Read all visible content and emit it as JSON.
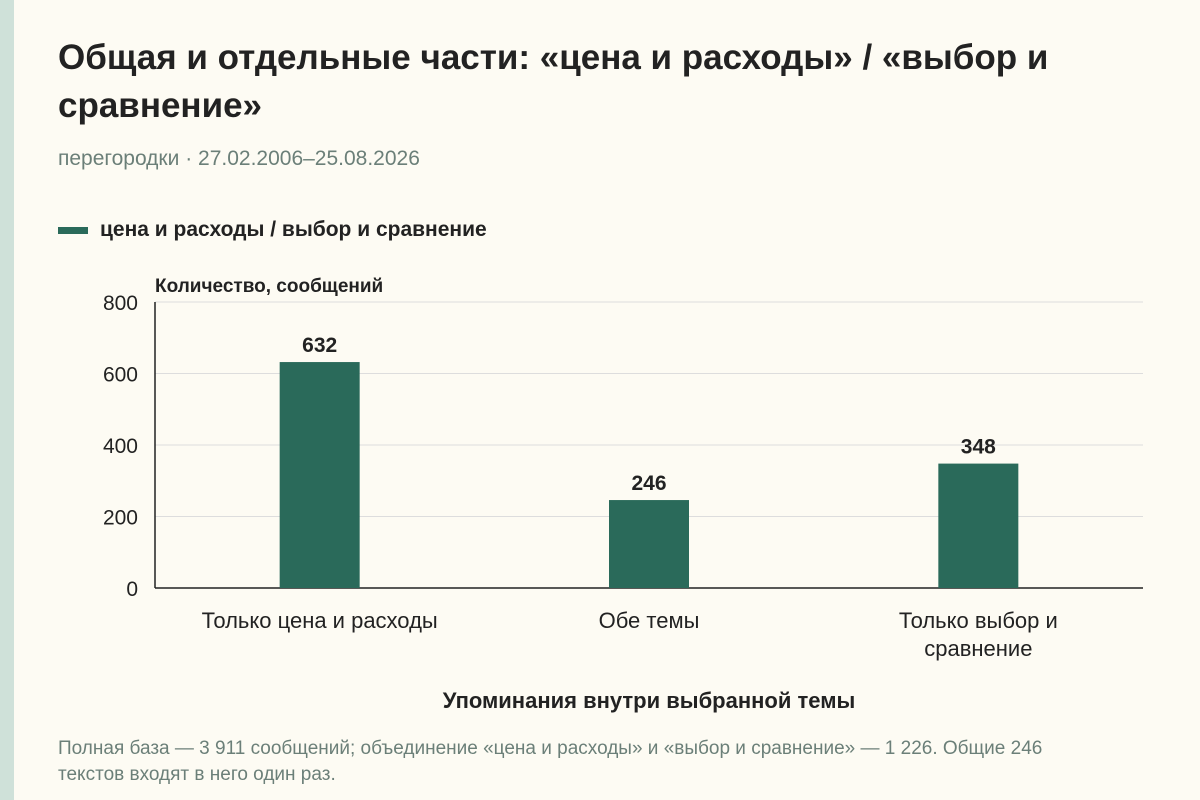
{
  "title": "Общая и отдельные части: «цена и расходы» / «выбор и сравнение»",
  "subtitle": "перегородки · 27.02.2006–25.08.2026",
  "footnote": "Полная база — 3 911 сообщений; объединение «цена и расходы» и «выбор и сравнение» — 1 226. Общие 246 текстов входят в него один раз.",
  "colors": {
    "bar": "#2a6a5a",
    "accent_strip": "#cfe1d9",
    "muted_text": "#6b7f78",
    "gridline": "#dddddd",
    "axis": "#222222"
  },
  "chart_data": {
    "type": "bar",
    "categories": [
      [
        "Только цена и расходы"
      ],
      [
        "Обе темы"
      ],
      [
        "Только выбор и",
        "сравнение"
      ]
    ],
    "series": [
      {
        "name": "цена и расходы / выбор и сравнение",
        "values": [
          632,
          246,
          348
        ]
      }
    ],
    "ylabel": "Количество, сообщений",
    "xlabel": "Упоминания внутри выбранной темы",
    "ylim": [
      0,
      800
    ],
    "yticks": [
      0,
      200,
      400,
      600,
      800
    ],
    "grid": true,
    "legend": "top-left"
  }
}
